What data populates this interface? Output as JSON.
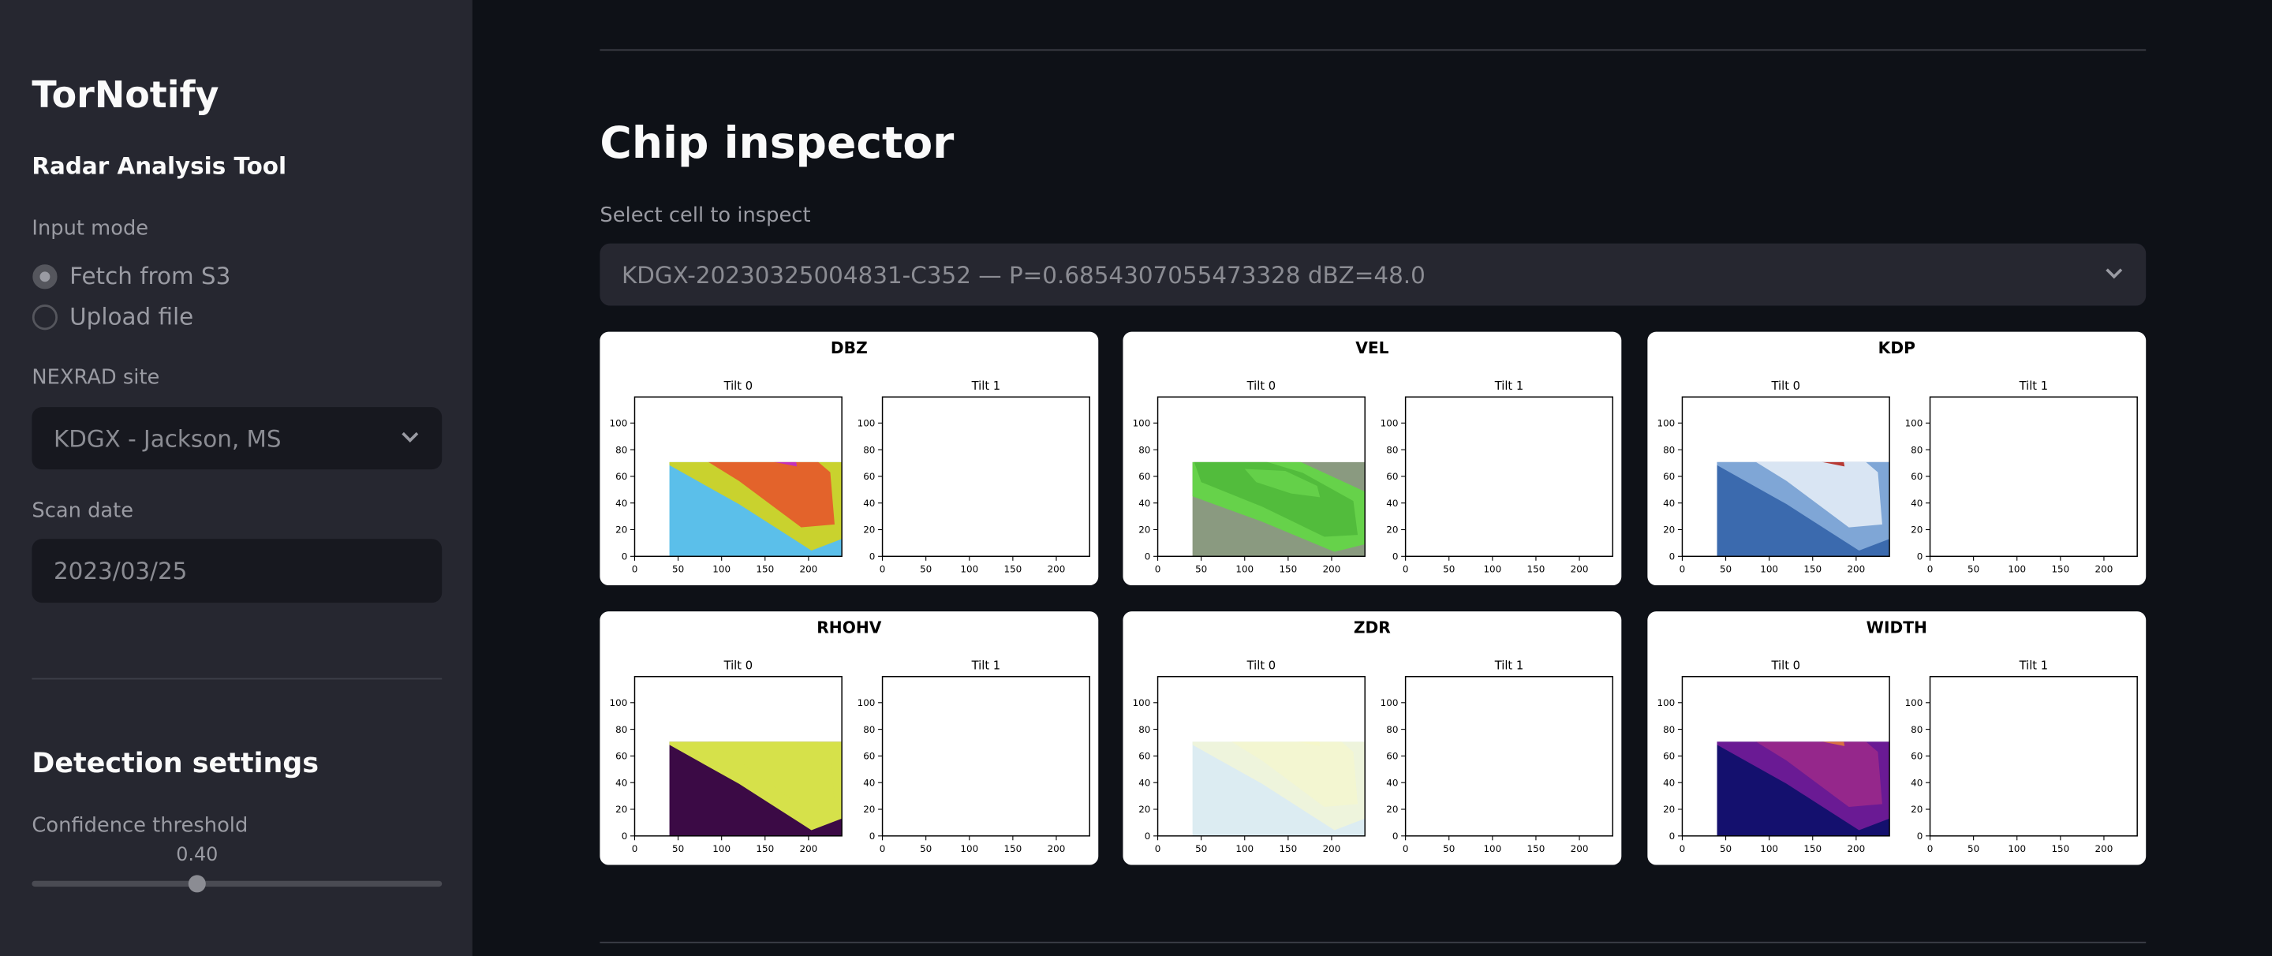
{
  "sidebar": {
    "app_title": "TorNotify",
    "subtitle": "Radar Analysis Tool",
    "input_mode": {
      "label": "Input mode",
      "options": [
        "Fetch from S3",
        "Upload file"
      ]
    },
    "site": {
      "label": "NEXRAD site",
      "value": "KDGX - Jackson, MS"
    },
    "scan_date": {
      "label": "Scan date",
      "value": "2023/03/25"
    },
    "detection": {
      "heading": "Detection settings",
      "threshold_label": "Confidence threshold",
      "threshold_value": "0.40"
    }
  },
  "main": {
    "title": "Chip inspector",
    "cell_select": {
      "label": "Select cell to inspect",
      "value": "KDGX-20230325004831-C352 — P=0.6854307055473328 dBZ=48.0"
    },
    "panels": [
      {
        "title": "DBZ",
        "subplots": [
          "Tilt 0",
          "Tilt 1"
        ]
      },
      {
        "title": "VEL",
        "subplots": [
          "Tilt 0",
          "Tilt 1"
        ]
      },
      {
        "title": "KDP",
        "subplots": [
          "Tilt 0",
          "Tilt 1"
        ]
      },
      {
        "title": "RHOHV",
        "subplots": [
          "Tilt 0",
          "Tilt 1"
        ]
      },
      {
        "title": "ZDR",
        "subplots": [
          "Tilt 0",
          "Tilt 1"
        ]
      },
      {
        "title": "WIDTH",
        "subplots": [
          "Tilt 0",
          "Tilt 1"
        ]
      }
    ],
    "axis": {
      "xticks": [
        0,
        50,
        100,
        150,
        200
      ],
      "yticks": [
        0,
        20,
        40,
        60,
        80,
        100
      ]
    }
  }
}
